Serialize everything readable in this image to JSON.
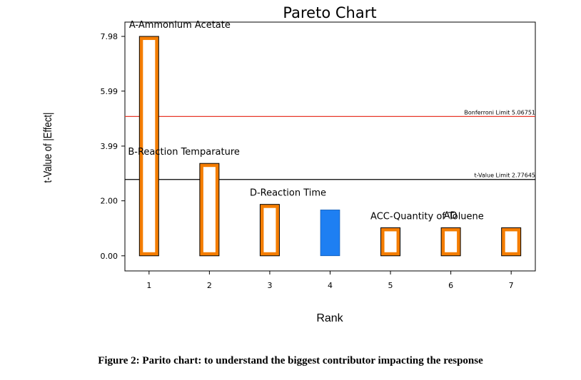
{
  "figure_caption": "Figure 2: Parito chart: to understand the biggest contributor impacting the response",
  "chart_data": {
    "type": "bar",
    "title": "Pareto Chart",
    "xlabel": "Rank",
    "ylabel": "t-Value of |Effect|",
    "xlim": [
      0.6,
      7.4
    ],
    "ylim": [
      -0.55,
      8.5
    ],
    "yticks": [
      "0.00",
      "2.00",
      "3.99",
      "5.99",
      "7.98"
    ],
    "xticks": [
      "1",
      "2",
      "3",
      "4",
      "5",
      "6",
      "7"
    ],
    "bars": [
      {
        "rank": 1,
        "value": 7.98,
        "label": "A-Ammonium Acetate",
        "color": "#F47D00",
        "style": "outline"
      },
      {
        "rank": 2,
        "value": 3.36,
        "label": "B-Reaction Temparature",
        "color": "#F47D00",
        "style": "outline"
      },
      {
        "rank": 3,
        "value": 1.87,
        "label": "D-Reaction Time",
        "color": "#F47D00",
        "style": "outline"
      },
      {
        "rank": 4,
        "value": 1.67,
        "label": "",
        "color": "#1E7FF2",
        "style": "solid"
      },
      {
        "rank": 5,
        "value": 1.02,
        "label": "ACC-Quantity of Toluene",
        "color": "#F47D00",
        "style": "outline"
      },
      {
        "rank": 6,
        "value": 1.02,
        "label": "AD",
        "color": "#F47D00",
        "style": "outline"
      },
      {
        "rank": 7,
        "value": 1.02,
        "label": "",
        "color": "#F47D00",
        "style": "outline"
      }
    ],
    "reference_lines": [
      {
        "value": 5.06751,
        "label": "Bonferroni Limit 5.06751",
        "color": "#E8392B"
      },
      {
        "value": 2.77645,
        "label": "t-Value Limit 2.77645",
        "color": "#000000"
      }
    ],
    "grid": false,
    "legend": "none"
  }
}
